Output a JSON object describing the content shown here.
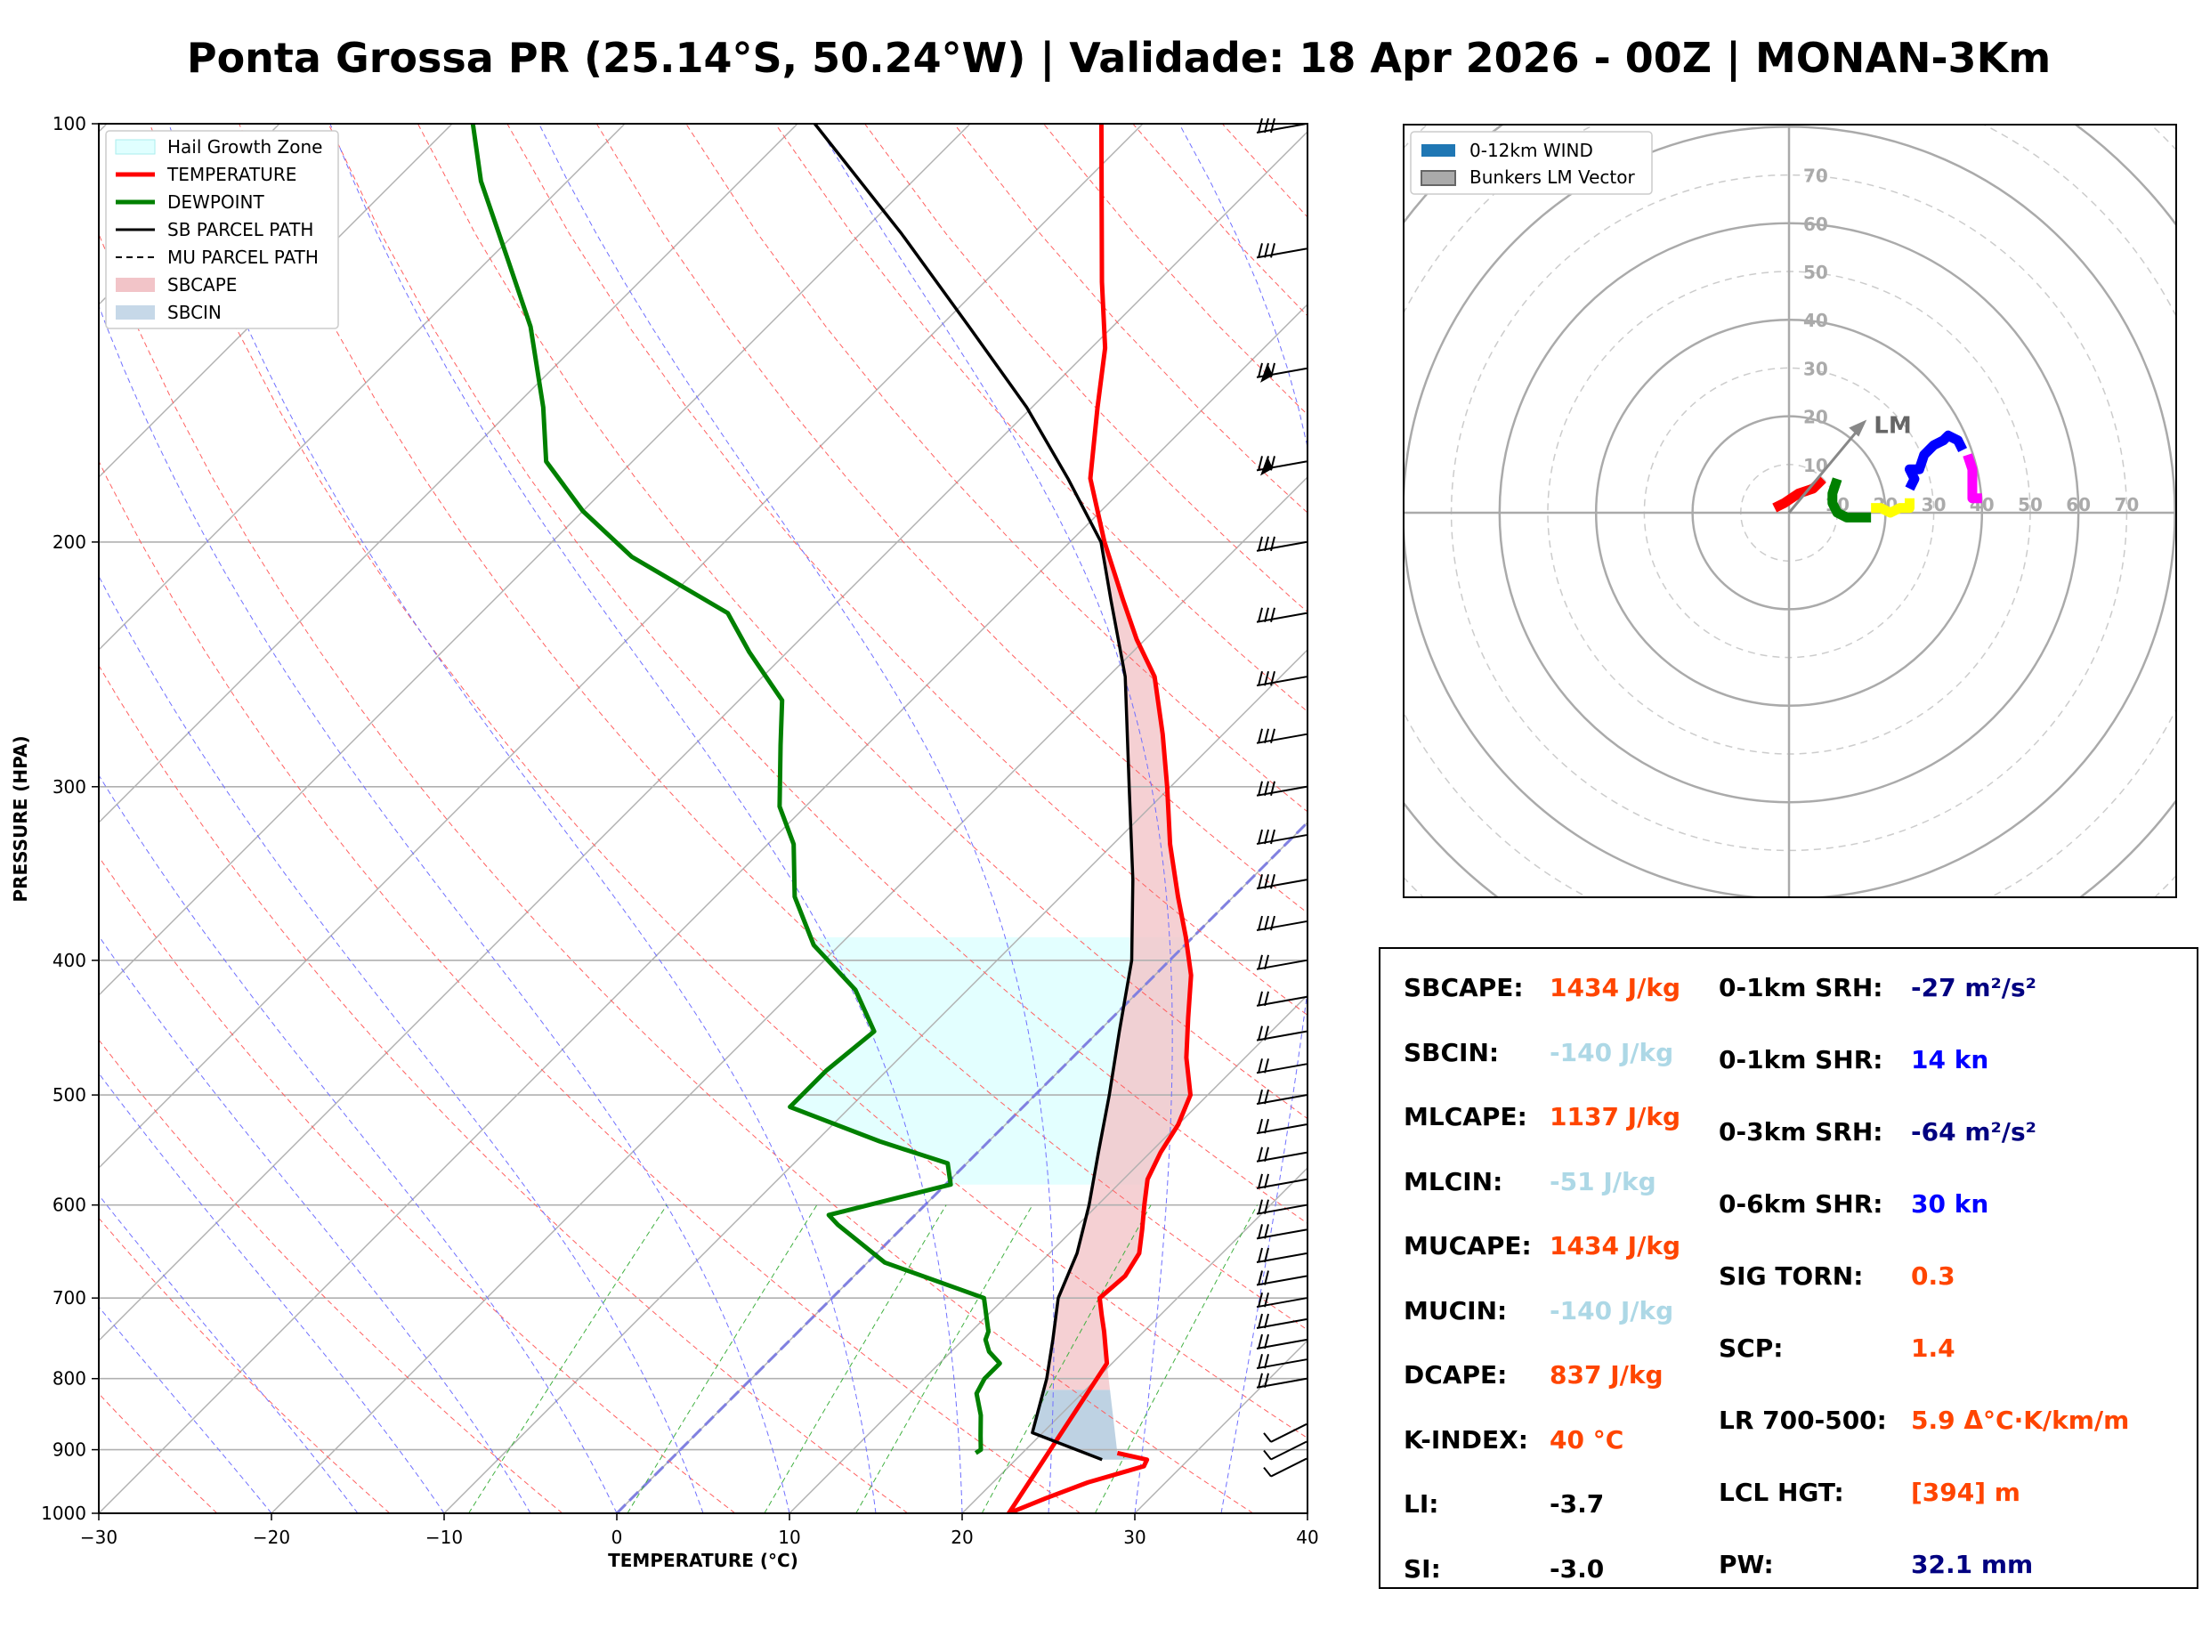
{
  "title": "Ponta Grossa PR (25.14°S, 50.24°W) | Validade: 18 Apr 2026 - 00Z | MONAN-3Km",
  "chart_data": [
    {
      "type": "line",
      "name": "skew-t",
      "xlabel": "TEMPERATURE (°C)",
      "ylabel": "PRESSURE (HPA)",
      "xlim": [
        -30,
        40
      ],
      "ylim": [
        1000,
        100
      ],
      "x_ticks": [
        "−30",
        "−20",
        "−10",
        "0",
        "10",
        "20",
        "30",
        "40"
      ],
      "y_ticks": [
        "100",
        "200",
        "300",
        "400",
        "500",
        "600",
        "700",
        "800",
        "900",
        "1000"
      ],
      "legend": [
        "Hail Growth Zone",
        "TEMPERATURE",
        "DEWPOINT",
        "SB PARCEL PATH",
        "MU PARCEL PATH",
        "SBCAPE",
        "SBCIN"
      ],
      "series": [
        {
          "name": "TEMPERATURE",
          "color": "#ff0000",
          "points": [
            [
              905,
              25.5
            ],
            [
              915,
              27.6
            ],
            [
              925,
              27.8
            ],
            [
              950,
              25.5
            ],
            [
              975,
              24.0
            ],
            [
              1000,
              22.7
            ],
            [
              780,
              19.7
            ],
            [
              740,
              17.7
            ],
            [
              720,
              16.6
            ],
            [
              700,
              15.5
            ],
            [
              675,
              15.7
            ],
            [
              650,
              15.2
            ],
            [
              625,
              14.0
            ],
            [
              600,
              12.7
            ],
            [
              575,
              11.4
            ],
            [
              550,
              10.6
            ],
            [
              525,
              10.0
            ],
            [
              500,
              9.0
            ],
            [
              470,
              6.6
            ],
            [
              440,
              4.4
            ],
            [
              410,
              2.1
            ],
            [
              385,
              -0.4
            ],
            [
              360,
              -3.2
            ],
            [
              330,
              -6.7
            ],
            [
              300,
              -10.2
            ],
            [
              275,
              -13.5
            ],
            [
              250,
              -17.3
            ],
            [
              235,
              -20.5
            ],
            [
              220,
              -23.6
            ],
            [
              200,
              -28.0
            ],
            [
              180,
              -32.5
            ],
            [
              160,
              -36.2
            ],
            [
              145,
              -39.2
            ],
            [
              130,
              -43.2
            ],
            [
              115,
              -47.5
            ],
            [
              100,
              -52.4
            ]
          ]
        },
        {
          "name": "DEWPOINT",
          "color": "#008000",
          "points": [
            [
              905,
              17.3
            ],
            [
              900,
              17.4
            ],
            [
              880,
              16.6
            ],
            [
              850,
              15.4
            ],
            [
              820,
              13.9
            ],
            [
              800,
              13.5
            ],
            [
              780,
              13.5
            ],
            [
              765,
              12.2
            ],
            [
              750,
              11.3
            ],
            [
              740,
              11.0
            ],
            [
              700,
              8.8
            ],
            [
              660,
              1.0
            ],
            [
              620,
              -3.9
            ],
            [
              610,
              -5.0
            ],
            [
              580,
              0.3
            ],
            [
              560,
              -1.1
            ],
            [
              540,
              -6.3
            ],
            [
              510,
              -13.5
            ],
            [
              480,
              -13.5
            ],
            [
              450,
              -13.0
            ],
            [
              420,
              -16.5
            ],
            [
              390,
              -21.5
            ],
            [
              360,
              -25.4
            ],
            [
              330,
              -28.5
            ],
            [
              310,
              -31.5
            ],
            [
              280,
              -35.0
            ],
            [
              260,
              -37.5
            ],
            [
              240,
              -42.2
            ],
            [
              225,
              -45.7
            ],
            [
              205,
              -54.5
            ],
            [
              190,
              -60.0
            ],
            [
              175,
              -65.0
            ],
            [
              160,
              -68.3
            ],
            [
              140,
              -73.7
            ],
            [
              125,
              -79.0
            ],
            [
              110,
              -85.0
            ],
            [
              100,
              -88.8
            ]
          ]
        },
        {
          "name": "SB PARCEL PATH",
          "color": "#000000",
          "points": [
            [
              915,
              25.0
            ],
            [
              875,
              19.4
            ],
            [
              800,
              17.1
            ],
            [
              750,
              15.2
            ],
            [
              700,
              13.1
            ],
            [
              650,
              11.6
            ],
            [
              600,
              9.5
            ],
            [
              550,
              7.0
            ],
            [
              500,
              4.3
            ],
            [
              450,
              1.2
            ],
            [
              400,
              -2.2
            ],
            [
              350,
              -6.8
            ],
            [
              300,
              -12.4
            ],
            [
              250,
              -19.0
            ],
            [
              220,
              -24.3
            ],
            [
              200,
              -28.2
            ],
            [
              180,
              -33.8
            ],
            [
              160,
              -40.3
            ],
            [
              140,
              -48.3
            ],
            [
              120,
              -57.6
            ],
            [
              100,
              -69.0
            ]
          ]
        },
        {
          "name": "SBCAPE",
          "color": "#f2c4c8",
          "range": [
            200,
            815
          ]
        },
        {
          "name": "SBCIN",
          "color": "#b7cde0",
          "range": [
            815,
            915
          ]
        },
        {
          "name": "Hail Growth Zone",
          "color": "#e0ffff",
          "range": [
            385,
            580
          ]
        }
      ]
    },
    {
      "type": "scatter",
      "name": "hodograph",
      "legend": [
        "0-12km WIND",
        "Bunkers LM Vector"
      ],
      "ring_labels_u": [
        "10",
        "20",
        "30",
        "40",
        "50",
        "60",
        "70"
      ],
      "ring_labels_v": [
        "10",
        "20",
        "30",
        "40",
        "50",
        "60",
        "70"
      ],
      "lm_label": "LM",
      "lm_vector": [
        15,
        18
      ],
      "series": [
        {
          "name": "0-1km",
          "color": "#ff0000",
          "points": [
            [
              -3,
              1
            ],
            [
              -1,
              2
            ],
            [
              2,
              4
            ],
            [
              5,
              5
            ],
            [
              6,
              6
            ],
            [
              7,
              7
            ]
          ]
        },
        {
          "name": "1-3km",
          "color": "#008000",
          "points": [
            [
              10,
              7
            ],
            [
              9,
              4
            ],
            [
              9,
              2
            ],
            [
              10,
              0
            ],
            [
              12,
              -1
            ],
            [
              14,
              -1
            ],
            [
              16,
              -1
            ],
            [
              17,
              -1
            ]
          ]
        },
        {
          "name": "3-6km",
          "color": "#ffff00",
          "points": [
            [
              17,
              1
            ],
            [
              19,
              1
            ],
            [
              21,
              0
            ],
            [
              23,
              1
            ],
            [
              24,
              1
            ],
            [
              25,
              1
            ],
            [
              25,
              2
            ],
            [
              25,
              3
            ]
          ]
        },
        {
          "name": "6-9km",
          "color": "#0000ff",
          "points": [
            [
              25,
              5
            ],
            [
              26,
              7
            ],
            [
              25,
              9
            ],
            [
              27,
              9
            ],
            [
              28,
              12
            ],
            [
              30,
              14
            ],
            [
              32,
              15
            ],
            [
              33,
              16
            ],
            [
              35,
              15
            ],
            [
              36,
              13
            ]
          ]
        },
        {
          "name": "9-12km",
          "color": "#ff00ff",
          "points": [
            [
              37,
              12
            ],
            [
              38,
              9
            ],
            [
              38,
              6
            ],
            [
              38,
              4
            ],
            [
              38,
              3
            ],
            [
              40,
              3
            ]
          ]
        }
      ]
    }
  ],
  "wind_barb_levels": [
    100,
    123,
    150,
    175,
    200,
    225,
    250,
    275,
    300,
    325,
    350,
    375,
    400,
    425,
    450,
    475,
    500,
    525,
    550,
    575,
    600,
    625,
    650,
    675,
    700,
    725,
    750,
    775,
    800,
    850,
    875,
    900
  ],
  "stats": {
    "left": [
      {
        "label": "SBCAPE:",
        "value": "1434 J/kg",
        "color": "#ff4500"
      },
      {
        "label": "SBCIN:",
        "value": "-140 J/kg",
        "color": "#add8e6"
      },
      {
        "label": "MLCAPE:",
        "value": "1137 J/kg",
        "color": "#ff4500"
      },
      {
        "label": "MLCIN:",
        "value": "-51 J/kg",
        "color": "#add8e6"
      },
      {
        "label": "MUCAPE:",
        "value": "1434 J/kg",
        "color": "#ff4500"
      },
      {
        "label": "MUCIN:",
        "value": "-140 J/kg",
        "color": "#add8e6"
      },
      {
        "label": "DCAPE:",
        "value": "837 J/kg",
        "color": "#ff4500"
      },
      {
        "label": "K-INDEX:",
        "value": "40 °C",
        "color": "#ff4500"
      },
      {
        "label": "LI:",
        "value": "-3.7",
        "color": "#000000"
      },
      {
        "label": "SI:",
        "value": "-3.0",
        "color": "#000000"
      }
    ],
    "right": [
      {
        "label": "0-1km SRH:",
        "value": "-27 m²/s²",
        "color": "#000080"
      },
      {
        "label": "0-1km SHR:",
        "value": "14 kn",
        "color": "#0000ff"
      },
      {
        "label": "0-3km SRH:",
        "value": "-64 m²/s²",
        "color": "#000080"
      },
      {
        "label": "0-6km SHR:",
        "value": "30 kn",
        "color": "#0000ff"
      },
      {
        "label": "SIG TORN:",
        "value": "0.3",
        "color": "#ff4500"
      },
      {
        "label": "SCP:",
        "value": "1.4",
        "color": "#ff4500"
      },
      {
        "label": "LR 700-500:",
        "value": "5.9 Δ°C·K/km/m",
        "color": "#ff4500"
      },
      {
        "label": "LCL HGT:",
        "value": "[394] m",
        "color": "#ff4500"
      },
      {
        "label": "PW:",
        "value": "32.1 mm",
        "color": "#000080"
      }
    ]
  }
}
